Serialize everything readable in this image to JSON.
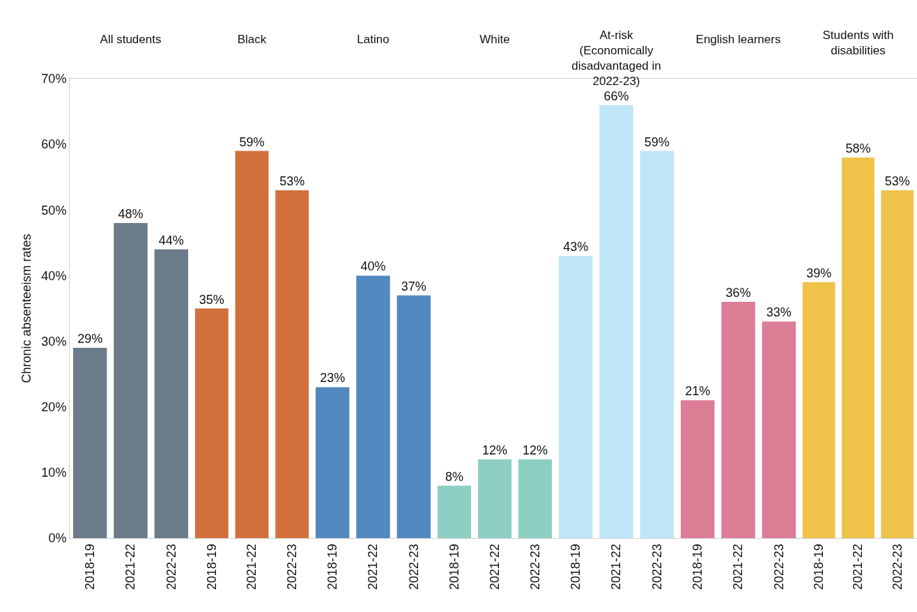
{
  "chart_data": [
    {
      "type": "bar",
      "title": "All students",
      "ylabel": "Chronic absenteeism rates",
      "categories": [
        "2018-19",
        "2021-22",
        "2022-23"
      ],
      "series": [
        {
          "color": "#6b7b8a",
          "values": [
            29,
            48,
            44
          ],
          "value_labels": [
            "29%",
            "48%",
            "44%"
          ]
        }
      ],
      "ylim": [
        0,
        70
      ],
      "yticks": [
        {
          "value": 0,
          "label": "0%"
        },
        {
          "value": 10,
          "label": "10%"
        },
        {
          "value": 20,
          "label": "20%"
        },
        {
          "value": 30,
          "label": "30%"
        },
        {
          "value": 40,
          "label": "40%"
        },
        {
          "value": 50,
          "label": "50%"
        },
        {
          "value": 60,
          "label": "60%"
        },
        {
          "value": 70,
          "label": "70%"
        }
      ]
    },
    {
      "type": "bar",
      "title": "Black",
      "categories": [
        "2018-19",
        "2021-22",
        "2022-23"
      ],
      "series": [
        {
          "color": "#d2703c",
          "values": [
            35,
            59,
            53
          ],
          "value_labels": [
            "35%",
            "59%",
            "53%"
          ]
        }
      ],
      "ylim": [
        0,
        70
      ],
      "tick_labels": "x"
    },
    {
      "type": "bar",
      "title": "Latino",
      "categories": [
        "2018-19",
        "2021-22",
        "2022-23"
      ],
      "series": [
        {
          "color": "#5288c0",
          "values": [
            23,
            40,
            37
          ],
          "value_labels": [
            "23%",
            "40%",
            "37%"
          ]
        }
      ],
      "ylim": [
        0,
        70
      ],
      "tick_labels": "x"
    },
    {
      "type": "bar",
      "title": "White",
      "categories": [
        "2018-19",
        "2021-22",
        "2022-23"
      ],
      "series": [
        {
          "color": "#8ecfc4",
          "values": [
            8,
            12,
            12
          ],
          "value_labels": [
            "8%",
            "12%",
            "12%"
          ]
        }
      ],
      "ylim": [
        0,
        70
      ],
      "tick_labels": "x"
    },
    {
      "type": "bar",
      "title": "At-risk (Economically disadvantaged in 2022-23)",
      "categories": [
        "2018-19",
        "2021-22",
        "2022-23"
      ],
      "series": [
        {
          "color": "#bfe5f8",
          "values": [
            43,
            66,
            59
          ],
          "value_labels": [
            "43%",
            "66%",
            "59%"
          ]
        }
      ],
      "ylim": [
        0,
        70
      ],
      "tick_labels": "x"
    },
    {
      "type": "bar",
      "title": "English learners",
      "categories": [
        "2018-19",
        "2021-22",
        "2022-23"
      ],
      "series": [
        {
          "color": "#dc7d96",
          "values": [
            21,
            36,
            33
          ],
          "value_labels": [
            "21%",
            "36%",
            "33%"
          ]
        }
      ],
      "ylim": [
        0,
        70
      ],
      "tick_labels": "x"
    },
    {
      "type": "bar",
      "title": "Students with disabilities",
      "categories": [
        "2018-19",
        "2021-22",
        "2022-23"
      ],
      "series": [
        {
          "color": "#efc24a",
          "values": [
            39,
            58,
            53
          ],
          "value_labels": [
            "39%",
            "58%",
            "53%"
          ]
        }
      ],
      "ylim": [
        0,
        70
      ],
      "tick_labels": "x"
    }
  ]
}
